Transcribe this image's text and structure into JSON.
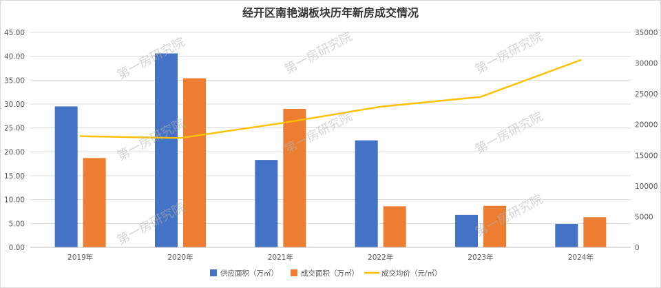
{
  "chart_data": {
    "type": "bar",
    "title": "经开区南艳湖板块历年新房成交情况",
    "categories": [
      "2019年",
      "2020年",
      "2021年",
      "2022年",
      "2023年",
      "2024年"
    ],
    "series": [
      {
        "name": "供应面积（万㎡）",
        "kind": "bar",
        "axis": "left",
        "color": "#4472c4",
        "values": [
          29.5,
          40.6,
          18.3,
          22.4,
          6.8,
          4.9
        ]
      },
      {
        "name": "成交面积（万㎡）",
        "kind": "bar",
        "axis": "left",
        "color": "#ed7d31",
        "values": [
          18.7,
          35.4,
          29.0,
          8.6,
          8.7,
          6.3
        ]
      },
      {
        "name": "成交均价（元/㎡）",
        "kind": "line",
        "axis": "right",
        "color": "#ffc000",
        "values": [
          18100,
          17800,
          20200,
          22900,
          24500,
          30500
        ]
      }
    ],
    "y_left": {
      "min": 0,
      "max": 45,
      "ticks": [
        "0.00",
        "5.00",
        "10.00",
        "15.00",
        "20.00",
        "25.00",
        "30.00",
        "35.00",
        "40.00",
        "45.00"
      ]
    },
    "y_right": {
      "min": 0,
      "max": 35000,
      "ticks": [
        "0",
        "5000",
        "10000",
        "15000",
        "20000",
        "25000",
        "30000",
        "35000"
      ]
    },
    "grid": true,
    "legend": "bottom"
  },
  "watermark": "第一房研究院"
}
